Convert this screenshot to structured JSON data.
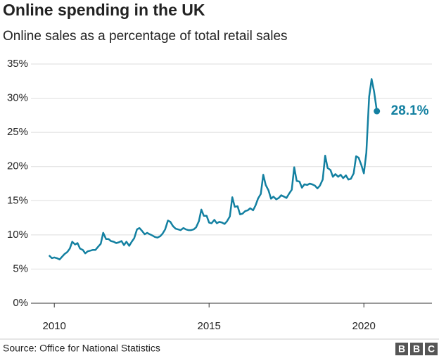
{
  "chart_data": {
    "type": "line",
    "title": "Online spending in the UK",
    "subtitle": "Online sales as a percentage of total retail sales",
    "source": "Source: Office for National Statistics",
    "logo": [
      "B",
      "B",
      "C"
    ],
    "annotation": "28.1%",
    "color": "#1380a1",
    "grid": true,
    "xlim": [
      2009.2,
      2022.2
    ],
    "xticks": [
      2010,
      2015,
      2020
    ],
    "ylim": [
      0,
      35
    ],
    "yticks": [
      {
        "value": 0,
        "label": "0%"
      },
      {
        "value": 5,
        "label": "5%"
      },
      {
        "value": 10,
        "label": "10%"
      },
      {
        "value": 15,
        "label": "15%"
      },
      {
        "value": 20,
        "label": "20%"
      },
      {
        "value": 25,
        "label": "25%"
      },
      {
        "value": 30,
        "label": "30%"
      },
      {
        "value": 35,
        "label": "35%"
      }
    ],
    "x": [
      2009.83,
      2009.92,
      2010.0,
      2010.08,
      2010.17,
      2010.25,
      2010.33,
      2010.42,
      2010.5,
      2010.58,
      2010.67,
      2010.75,
      2010.83,
      2010.92,
      2011.0,
      2011.08,
      2011.17,
      2011.25,
      2011.33,
      2011.42,
      2011.5,
      2011.58,
      2011.67,
      2011.75,
      2011.83,
      2011.92,
      2012.0,
      2012.08,
      2012.17,
      2012.25,
      2012.33,
      2012.42,
      2012.5,
      2012.58,
      2012.67,
      2012.75,
      2012.83,
      2012.92,
      2013.0,
      2013.08,
      2013.17,
      2013.25,
      2013.33,
      2013.42,
      2013.5,
      2013.58,
      2013.67,
      2013.75,
      2013.83,
      2013.92,
      2014.0,
      2014.08,
      2014.17,
      2014.25,
      2014.33,
      2014.42,
      2014.5,
      2014.58,
      2014.67,
      2014.75,
      2014.83,
      2014.92,
      2015.0,
      2015.08,
      2015.17,
      2015.25,
      2015.33,
      2015.42,
      2015.5,
      2015.58,
      2015.67,
      2015.75,
      2015.83,
      2015.92,
      2016.0,
      2016.08,
      2016.17,
      2016.25,
      2016.33,
      2016.42,
      2016.5,
      2016.58,
      2016.67,
      2016.75,
      2016.83,
      2016.92,
      2017.0,
      2017.08,
      2017.17,
      2017.25,
      2017.33,
      2017.42,
      2017.5,
      2017.58,
      2017.67,
      2017.75,
      2017.83,
      2017.92,
      2018.0,
      2018.08,
      2018.17,
      2018.25,
      2018.33,
      2018.42,
      2018.5,
      2018.58,
      2018.67,
      2018.75,
      2018.83,
      2018.92,
      2019.0,
      2019.08,
      2019.17,
      2019.25,
      2019.33,
      2019.42,
      2019.5,
      2019.58,
      2019.67,
      2019.75,
      2019.83,
      2019.92,
      2020.0,
      2020.08,
      2020.17,
      2020.25,
      2020.33,
      2020.42
    ],
    "values": [
      7.0,
      6.6,
      6.7,
      6.6,
      6.4,
      6.8,
      7.2,
      7.5,
      8.0,
      9.0,
      8.6,
      8.8,
      8.0,
      7.8,
      7.3,
      7.6,
      7.7,
      7.8,
      7.8,
      8.3,
      8.7,
      10.3,
      9.4,
      9.4,
      9.1,
      9.0,
      8.8,
      8.9,
      9.1,
      8.5,
      9.0,
      8.4,
      9.0,
      9.5,
      10.8,
      11.0,
      10.6,
      10.1,
      10.3,
      10.1,
      9.9,
      9.7,
      9.6,
      9.8,
      10.2,
      10.8,
      12.1,
      11.9,
      11.3,
      10.9,
      10.8,
      10.7,
      11.0,
      10.8,
      10.7,
      10.7,
      10.8,
      11.1,
      12.0,
      13.7,
      12.8,
      12.8,
      11.8,
      11.7,
      12.2,
      11.7,
      11.9,
      11.8,
      11.6,
      12.0,
      12.7,
      15.5,
      14.1,
      14.2,
      13.0,
      13.1,
      13.5,
      13.6,
      13.9,
      13.6,
      14.3,
      15.3,
      16.0,
      18.8,
      17.3,
      16.5,
      15.3,
      15.6,
      15.2,
      15.4,
      15.8,
      15.6,
      15.4,
      16.0,
      16.6,
      19.9,
      17.9,
      17.8,
      16.9,
      17.4,
      17.3,
      17.5,
      17.4,
      17.2,
      16.8,
      17.2,
      18.1,
      21.6,
      19.8,
      19.5,
      18.5,
      18.9,
      18.5,
      18.8,
      18.3,
      18.7,
      18.1,
      18.2,
      19.0,
      21.5,
      21.3,
      20.2,
      19.0,
      22.0,
      30.2,
      32.8,
      31.0,
      28.1
    ]
  }
}
